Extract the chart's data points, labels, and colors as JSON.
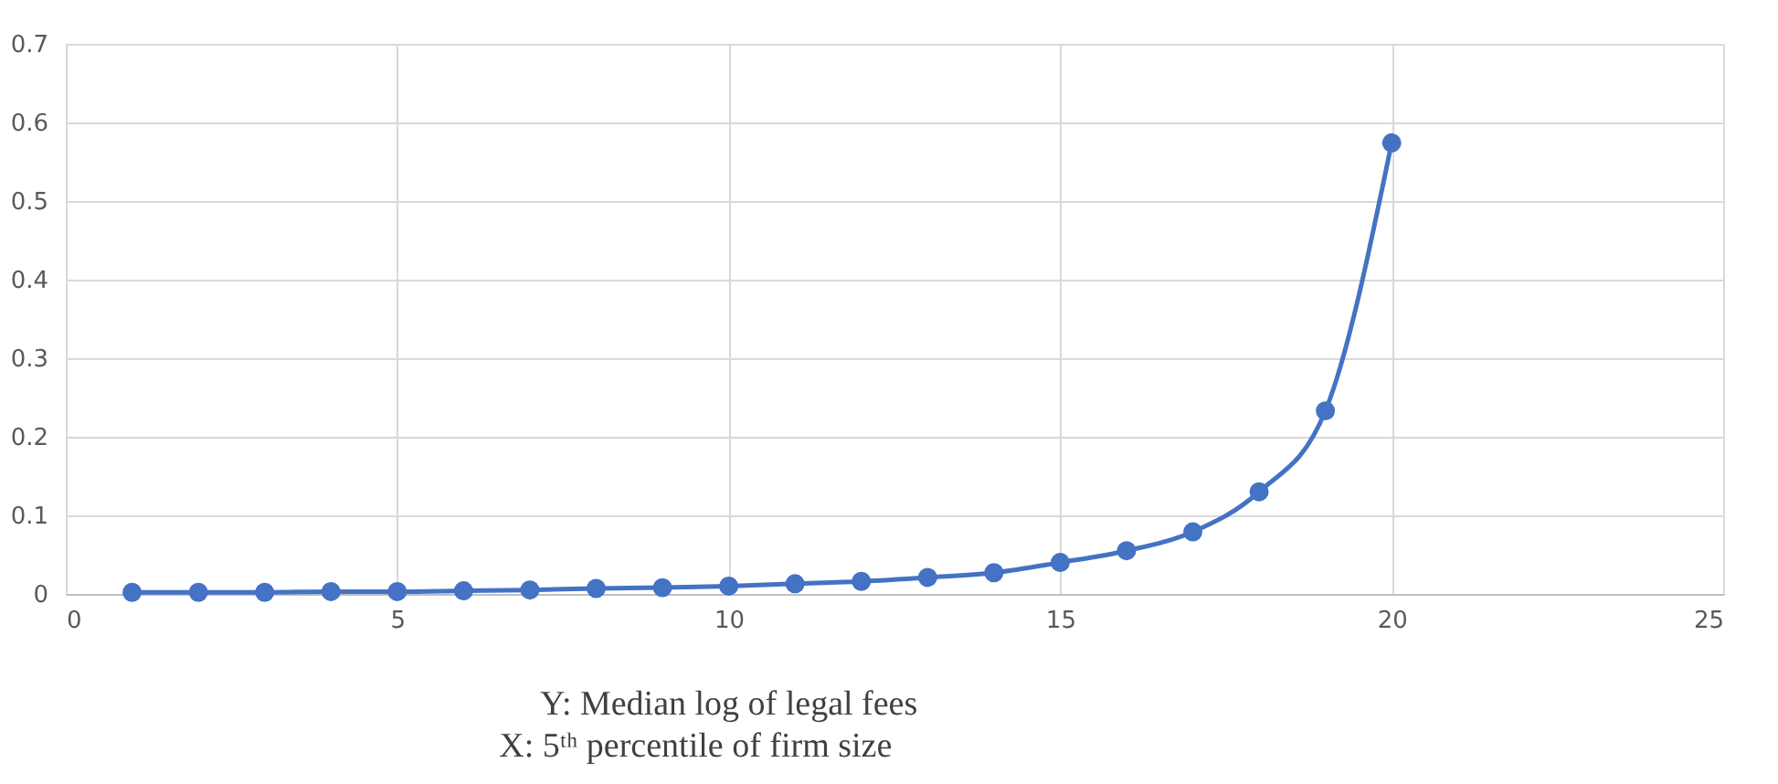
{
  "chart_data": {
    "type": "line",
    "x": [
      1,
      2,
      3,
      4,
      5,
      6,
      7,
      8,
      9,
      10,
      11,
      12,
      13,
      14,
      15,
      16,
      17,
      18,
      19,
      20
    ],
    "series": [
      {
        "color": "#4472c4",
        "values": [
          0.002,
          0.002,
          0.002,
          0.003,
          0.003,
          0.004,
          0.005,
          0.007,
          0.008,
          0.01,
          0.013,
          0.016,
          0.021,
          0.027,
          0.04,
          0.055,
          0.079,
          0.13,
          0.233,
          0.574
        ]
      }
    ],
    "xlim": [
      0,
      25
    ],
    "xticks": [
      0,
      5,
      10,
      15,
      20,
      25
    ],
    "ylim": [
      0,
      0.7
    ],
    "yticks": [
      0,
      0.1,
      0.2,
      0.3,
      0.4,
      0.5,
      0.6,
      0.7
    ],
    "grid": true,
    "marker": "circle",
    "line_style": "solid",
    "annotations": [
      "Y: Median log of legal fees",
      "X: 5ᵗʰ percentile of firm size"
    ]
  }
}
